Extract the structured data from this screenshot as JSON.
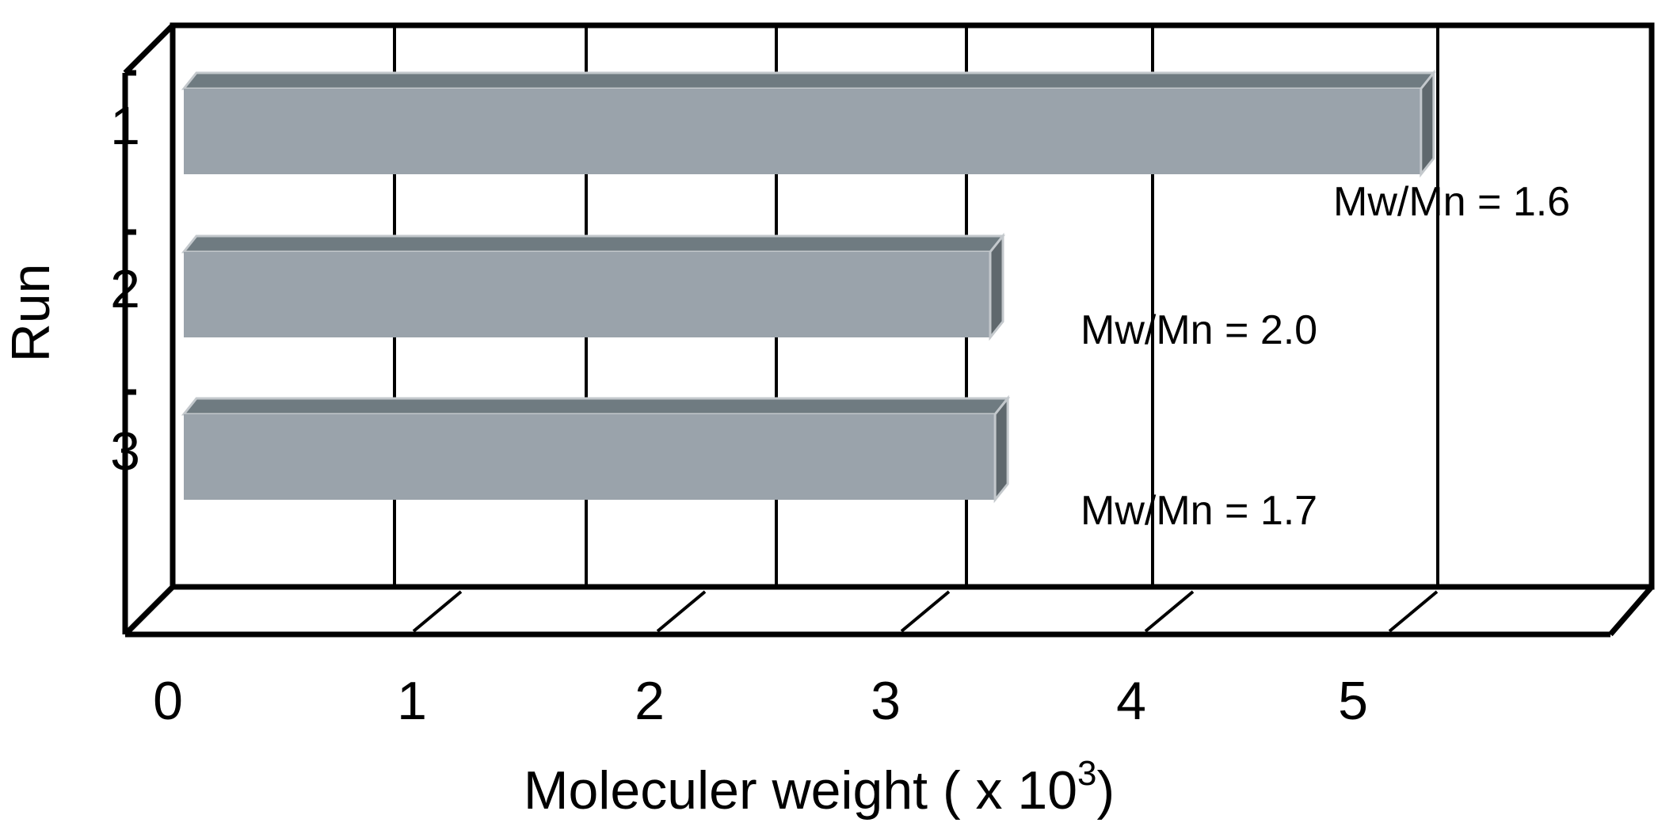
{
  "chart_data": {
    "type": "bar",
    "orientation": "horizontal",
    "style": "3d",
    "categories": [
      "1",
      "2",
      "3"
    ],
    "values": [
      5.42,
      3.64,
      3.66
    ],
    "annotations": [
      "Mw/Mn = 1.6",
      "Mw/Mn = 2.0",
      "Mw/Mn = 1.7"
    ],
    "xlabel": "Moleculer weight ( x 10",
    "xlabel_superscript": "3",
    "xlabel_suffix": ")",
    "ylabel": "Run",
    "xlim": [
      0,
      6
    ],
    "xticks": [
      "0",
      "1",
      "2",
      "3",
      "4",
      "5"
    ],
    "grid": true,
    "title": "",
    "colors": {
      "bar_front": "#9aa3ab",
      "bar_top": "#6f7b81",
      "bar_side": "#5f686d",
      "bar_edge": "#c3c8cc",
      "frame": "#000000"
    }
  }
}
